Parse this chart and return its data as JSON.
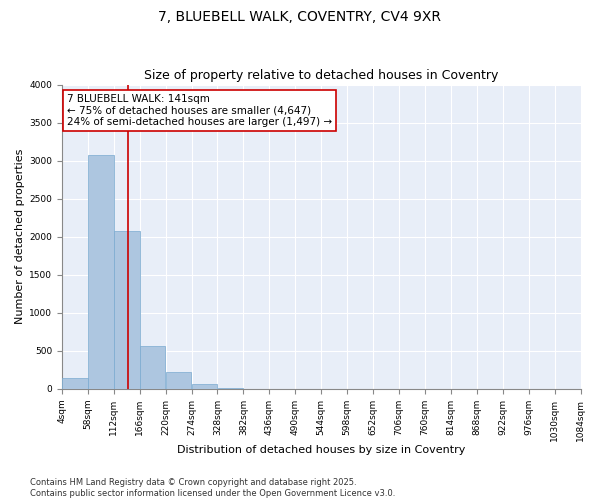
{
  "title_line1": "7, BLUEBELL WALK, COVENTRY, CV4 9XR",
  "title_line2": "Size of property relative to detached houses in Coventry",
  "xlabel": "Distribution of detached houses by size in Coventry",
  "ylabel": "Number of detached properties",
  "background_color": "#e8eef8",
  "bar_color": "#adc6e0",
  "bar_edge_color": "#7aaad0",
  "bin_starts": [
    4,
    58,
    112,
    166,
    220,
    274,
    328,
    382,
    436,
    490,
    544,
    598,
    652,
    706,
    760,
    814,
    868,
    922,
    976,
    1030
  ],
  "bin_width": 54,
  "bar_heights": [
    150,
    3080,
    2080,
    570,
    220,
    60,
    10,
    0,
    0,
    0,
    0,
    0,
    0,
    0,
    0,
    0,
    0,
    0,
    0,
    0
  ],
  "property_size": 141,
  "vline_color": "#cc0000",
  "annotation_line1": "7 BLUEBELL WALK: 141sqm",
  "annotation_line2": "← 75% of detached houses are smaller (4,647)",
  "annotation_line3": "24% of semi-detached houses are larger (1,497) →",
  "annotation_box_color": "#ffffff",
  "annotation_edge_color": "#cc0000",
  "ylim": [
    0,
    4000
  ],
  "yticks": [
    0,
    500,
    1000,
    1500,
    2000,
    2500,
    3000,
    3500,
    4000
  ],
  "xtick_labels": [
    "4sqm",
    "58sqm",
    "112sqm",
    "166sqm",
    "220sqm",
    "274sqm",
    "328sqm",
    "382sqm",
    "436sqm",
    "490sqm",
    "544sqm",
    "598sqm",
    "652sqm",
    "706sqm",
    "760sqm",
    "814sqm",
    "868sqm",
    "922sqm",
    "976sqm",
    "1030sqm",
    "1084sqm"
  ],
  "footer_text": "Contains HM Land Registry data © Crown copyright and database right 2025.\nContains public sector information licensed under the Open Government Licence v3.0.",
  "title_fontsize": 10,
  "subtitle_fontsize": 9,
  "axis_label_fontsize": 8,
  "tick_fontsize": 6.5,
  "annotation_fontsize": 7.5,
  "footer_fontsize": 6
}
